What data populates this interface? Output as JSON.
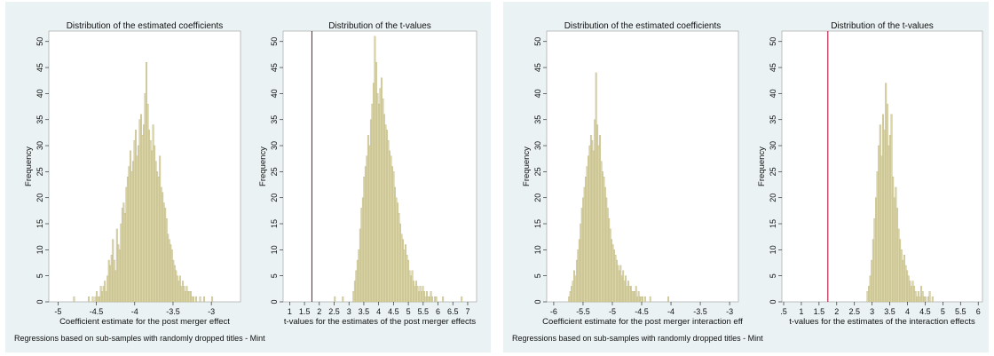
{
  "colors": {
    "panel_background": "#eaf2f3",
    "plot_background": "#ffffff",
    "bar_fill": "#dcd6a6",
    "bar_stroke": "#bbb486",
    "reference_line": "#a8002c",
    "text": "#111111"
  },
  "figures": [
    {
      "caption": "Regressions based on sub-samples with randomly dropped titles - Mint"
    },
    {
      "caption": "Regressions based on sub-samples with randomly dropped titles - Mint"
    }
  ],
  "chart_data": [
    {
      "type": "bar",
      "title": "Distribution of the estimated coefficients",
      "xlabel": "Coefficient estimate for the post merger effect",
      "ylabel": "Frequency",
      "xlim": [
        -5.12,
        -2.62
      ],
      "ylim": [
        0,
        52
      ],
      "xticks": [
        {
          "v": -5,
          "t": "-5"
        },
        {
          "v": -4.5,
          "t": "-4.5"
        },
        {
          "v": -4,
          "t": "-4"
        },
        {
          "v": -3.5,
          "t": "-3.5"
        },
        {
          "v": -3,
          "t": "-3"
        }
      ],
      "yticks": [
        {
          "v": 0,
          "t": "0"
        },
        {
          "v": 5,
          "t": "5"
        },
        {
          "v": 10,
          "t": "10"
        },
        {
          "v": 15,
          "t": "15"
        },
        {
          "v": 20,
          "t": "20"
        },
        {
          "v": 25,
          "t": "25"
        },
        {
          "v": 30,
          "t": "30"
        },
        {
          "v": 35,
          "t": "35"
        },
        {
          "v": 40,
          "t": "40"
        },
        {
          "v": 45,
          "t": "45"
        },
        {
          "v": 50,
          "t": "50"
        }
      ],
      "grid": false,
      "bins": {
        "start": -4.8,
        "width": 0.0175,
        "counts": [
          1,
          0,
          0,
          0,
          0,
          0,
          0,
          0,
          0,
          0,
          0,
          1,
          0,
          0,
          1,
          0,
          1,
          2,
          1,
          1,
          3,
          2,
          3,
          4,
          2,
          5,
          8,
          7,
          9,
          12,
          8,
          6,
          14,
          11,
          10,
          15,
          18,
          19,
          17,
          22,
          24,
          26,
          29,
          25,
          27,
          31,
          33,
          28,
          30,
          35,
          36,
          32,
          34,
          40,
          46,
          38,
          33,
          31,
          29,
          34,
          30,
          27,
          25,
          24,
          28,
          22,
          21,
          19,
          18,
          16,
          13,
          12,
          11,
          10,
          8,
          7,
          6,
          5,
          4,
          5,
          3,
          4,
          3,
          2,
          3,
          2,
          2,
          2,
          1,
          1,
          0,
          1,
          0,
          0,
          1,
          0,
          0,
          1,
          0,
          0,
          0,
          0,
          0,
          1
        ]
      }
    },
    {
      "type": "bar",
      "title": "Distribution of the t-values",
      "xlabel": "t-values for the estimates of the post merger effects",
      "ylabel": "Frequency",
      "xlim": [
        0.78,
        7.3
      ],
      "ylim": [
        0,
        52
      ],
      "reference_line_x": 1.75,
      "xticks": [
        {
          "v": 1,
          "t": "1"
        },
        {
          "v": 1.5,
          "t": "1.5"
        },
        {
          "v": 2,
          "t": "2"
        },
        {
          "v": 2.5,
          "t": "2.5"
        },
        {
          "v": 3,
          "t": "3"
        },
        {
          "v": 3.5,
          "t": "3.5"
        },
        {
          "v": 4,
          "t": "4"
        },
        {
          "v": 4.5,
          "t": "4.5"
        },
        {
          "v": 5,
          "t": "5"
        },
        {
          "v": 5.5,
          "t": "5.5"
        },
        {
          "v": 6,
          "t": "6"
        },
        {
          "v": 6.5,
          "t": "6.5"
        },
        {
          "v": 7,
          "t": "7"
        }
      ],
      "yticks": [
        {
          "v": 0,
          "t": "0"
        },
        {
          "v": 5,
          "t": "5"
        },
        {
          "v": 10,
          "t": "10"
        },
        {
          "v": 15,
          "t": "15"
        },
        {
          "v": 20,
          "t": "20"
        },
        {
          "v": 25,
          "t": "25"
        },
        {
          "v": 30,
          "t": "30"
        },
        {
          "v": 35,
          "t": "35"
        },
        {
          "v": 40,
          "t": "40"
        },
        {
          "v": 45,
          "t": "45"
        },
        {
          "v": 50,
          "t": "50"
        }
      ],
      "grid": false,
      "bins": {
        "start": 2.5,
        "width": 0.045,
        "counts": [
          1,
          0,
          0,
          0,
          0,
          0,
          1,
          0,
          0,
          0,
          0,
          0,
          0,
          0,
          2,
          4,
          6,
          8,
          10,
          14,
          18,
          20,
          24,
          26,
          28,
          32,
          30,
          35,
          38,
          42,
          51,
          46,
          40,
          38,
          41,
          43,
          39,
          36,
          34,
          33,
          31,
          29,
          28,
          26,
          25,
          22,
          20,
          19,
          17,
          15,
          13,
          12,
          10,
          11,
          9,
          8,
          6,
          5,
          6,
          4,
          3,
          4,
          3,
          2,
          3,
          2,
          3,
          2,
          1,
          2,
          1,
          1,
          2,
          1,
          0,
          1,
          1,
          0,
          0,
          0,
          0,
          1,
          0,
          0,
          0,
          0,
          0,
          0,
          0,
          0,
          0,
          0,
          0,
          0,
          0,
          1
        ]
      }
    },
    {
      "type": "bar",
      "title": "Distribution of the estimated coefficients",
      "xlabel": "Coefficient estimate for the post merger interaction eff",
      "ylabel": "Frequency",
      "xlim": [
        -6.12,
        -2.85
      ],
      "ylim": [
        0,
        52
      ],
      "xticks": [
        {
          "v": -6,
          "t": "-6"
        },
        {
          "v": -5.5,
          "t": "-5.5"
        },
        {
          "v": -5,
          "t": "-5"
        },
        {
          "v": -4.5,
          "t": "-4.5"
        },
        {
          "v": -4,
          "t": "-4"
        },
        {
          "v": -3.5,
          "t": "-3.5"
        },
        {
          "v": -3,
          "t": "-3"
        }
      ],
      "yticks": [
        {
          "v": 0,
          "t": "0"
        },
        {
          "v": 5,
          "t": "5"
        },
        {
          "v": 10,
          "t": "10"
        },
        {
          "v": 15,
          "t": "15"
        },
        {
          "v": 20,
          "t": "20"
        },
        {
          "v": 25,
          "t": "25"
        },
        {
          "v": 30,
          "t": "30"
        },
        {
          "v": 35,
          "t": "35"
        },
        {
          "v": 40,
          "t": "40"
        },
        {
          "v": 45,
          "t": "45"
        },
        {
          "v": 50,
          "t": "50"
        }
      ],
      "grid": false,
      "bins": {
        "start": -5.75,
        "width": 0.022,
        "counts": [
          1,
          2,
          3,
          4,
          6,
          5,
          8,
          10,
          12,
          15,
          18,
          20,
          22,
          24,
          26,
          28,
          30,
          32,
          31,
          29,
          35,
          44,
          34,
          30,
          32,
          27,
          25,
          24,
          22,
          20,
          18,
          16,
          14,
          12,
          11,
          10,
          9,
          8,
          7,
          6,
          7,
          5,
          6,
          4,
          5,
          3,
          4,
          3,
          3,
          2,
          2,
          2,
          3,
          1,
          2,
          1,
          1,
          1,
          0,
          1,
          0,
          0,
          0,
          1,
          0,
          0,
          0,
          0,
          0,
          0,
          0,
          0,
          0,
          0,
          0,
          0,
          0,
          1
        ]
      }
    },
    {
      "type": "bar",
      "title": "Distribution of the t-values",
      "xlabel": "t-values for the estimates of the interaction effects",
      "ylabel": "Frequency",
      "xlim": [
        0.45,
        6.12
      ],
      "ylim": [
        0,
        52
      ],
      "reference_line_x": 1.75,
      "xticks": [
        {
          "v": 0.5,
          "t": ".5"
        },
        {
          "v": 1,
          "t": "1"
        },
        {
          "v": 1.5,
          "t": "1.5"
        },
        {
          "v": 2,
          "t": "2"
        },
        {
          "v": 2.5,
          "t": "2.5"
        },
        {
          "v": 3,
          "t": "3"
        },
        {
          "v": 3.5,
          "t": "3.5"
        },
        {
          "v": 4,
          "t": "4"
        },
        {
          "v": 4.5,
          "t": "4.5"
        },
        {
          "v": 5,
          "t": "5"
        },
        {
          "v": 5.5,
          "t": "5.5"
        },
        {
          "v": 6,
          "t": "6"
        }
      ],
      "yticks": [
        {
          "v": 0,
          "t": "0"
        },
        {
          "v": 5,
          "t": "5"
        },
        {
          "v": 10,
          "t": "10"
        },
        {
          "v": 15,
          "t": "15"
        },
        {
          "v": 20,
          "t": "20"
        },
        {
          "v": 25,
          "t": "25"
        },
        {
          "v": 30,
          "t": "30"
        },
        {
          "v": 35,
          "t": "35"
        },
        {
          "v": 40,
          "t": "40"
        },
        {
          "v": 45,
          "t": "45"
        },
        {
          "v": 50,
          "t": "50"
        }
      ],
      "grid": false,
      "bins": {
        "start": 2.85,
        "width": 0.04,
        "counts": [
          2,
          3,
          5,
          8,
          12,
          16,
          20,
          25,
          30,
          34,
          28,
          36,
          33,
          42,
          38,
          30,
          32,
          36,
          24,
          20,
          22,
          18,
          14,
          12,
          10,
          8,
          9,
          7,
          6,
          5,
          4,
          3,
          4,
          3,
          2,
          1,
          2,
          1,
          3,
          2,
          1,
          1,
          0,
          1,
          2,
          0,
          1
        ]
      }
    }
  ]
}
